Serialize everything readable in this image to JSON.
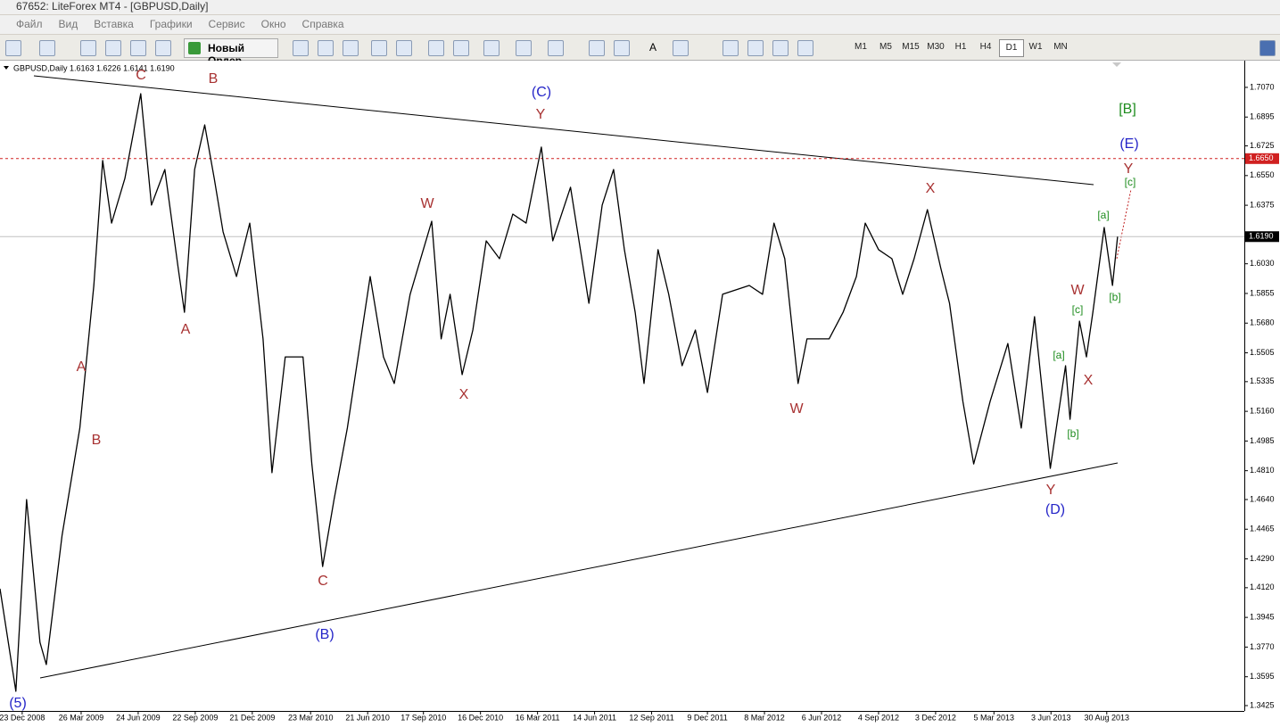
{
  "window": {
    "title": "67652: LiteForex MT4 - [GBPUSD,Daily]"
  },
  "menu": [
    "Файл",
    "Вид",
    "Вставка",
    "Графики",
    "Сервис",
    "Окно",
    "Справка"
  ],
  "toolbar": {
    "new_order": "Новый Ордер",
    "timeframes": [
      "M1",
      "M5",
      "M15",
      "M30",
      "H1",
      "H4",
      "D1",
      "W1",
      "MN"
    ],
    "active_timeframe": 6,
    "font_tool": "A"
  },
  "chart_data": {
    "type": "line",
    "title": "GBPUSD,Daily  1.6163 1.6226 1.6141 1.6190",
    "color": "#000000",
    "x": [
      "2008-11-18",
      "2008-12-13",
      "2008-12-30",
      "2009-01-20",
      "2009-01-30",
      "2009-02-24",
      "2009-03-24",
      "2009-04-15",
      "2009-04-29",
      "2009-05-13",
      "2009-06-03",
      "2009-06-28",
      "2009-07-15",
      "2009-08-05",
      "2009-08-26",
      "2009-09-05",
      "2009-09-21",
      "2009-10-07",
      "2009-10-22",
      "2009-11-05",
      "2009-11-26",
      "2009-12-17",
      "2010-01-07",
      "2010-01-21",
      "2010-02-11",
      "2010-03-11",
      "2010-03-25",
      "2010-04-11",
      "2010-04-29",
      "2010-05-20",
      "2010-06-25",
      "2010-07-16",
      "2010-08-02",
      "2010-08-27",
      "2010-09-30",
      "2010-10-15",
      "2010-10-29",
      "2010-11-17",
      "2010-12-04",
      "2010-12-25",
      "2011-01-15",
      "2011-02-05",
      "2011-02-26",
      "2011-03-22",
      "2011-04-09",
      "2011-05-07",
      "2011-06-05",
      "2011-06-26",
      "2011-07-14",
      "2011-07-31",
      "2011-08-17",
      "2011-08-31",
      "2011-09-22",
      "2011-10-09",
      "2011-10-30",
      "2011-11-20",
      "2011-12-09",
      "2012-01-02",
      "2012-02-13",
      "2012-03-05",
      "2012-03-23",
      "2012-04-09",
      "2012-04-30",
      "2012-05-14",
      "2012-06-18",
      "2012-07-10",
      "2012-07-31",
      "2012-08-14",
      "2012-09-04",
      "2012-09-25",
      "2012-10-12",
      "2012-10-30",
      "2012-11-20",
      "2012-12-11",
      "2012-12-25",
      "2013-01-15",
      "2013-02-01",
      "2013-02-27",
      "2013-03-27",
      "2013-04-17",
      "2013-05-08",
      "2013-06-02",
      "2013-06-26",
      "2013-07-03",
      "2013-07-18",
      "2013-07-29",
      "2013-08-08",
      "2013-08-26",
      "2013-09-08",
      "2013-09-16"
    ],
    "values": [
      1.4114,
      1.3509,
      1.464,
      1.3798,
      1.3667,
      1.4429,
      1.5061,
      1.5902,
      1.6639,
      1.627,
      1.6533,
      1.7033,
      1.6376,
      1.6586,
      1.6007,
      1.5744,
      1.6586,
      1.6849,
      1.6533,
      1.6218,
      1.5955,
      1.627,
      1.5587,
      1.4798,
      1.5481,
      1.5481,
      1.485,
      1.4245,
      1.464,
      1.5061,
      1.5955,
      1.5481,
      1.5324,
      1.585,
      1.6281,
      1.5587,
      1.585,
      1.5376,
      1.5639,
      1.6165,
      1.606,
      1.6323,
      1.627,
      1.6718,
      1.6165,
      1.6481,
      1.5797,
      1.6376,
      1.6586,
      1.6113,
      1.5744,
      1.5324,
      1.6113,
      1.585,
      1.5429,
      1.5639,
      1.5271,
      1.585,
      1.5902,
      1.585,
      1.627,
      1.606,
      1.5324,
      1.5587,
      1.5587,
      1.5744,
      1.5955,
      1.627,
      1.6113,
      1.606,
      1.585,
      1.606,
      1.6349,
      1.6007,
      1.5797,
      1.5218,
      1.485,
      1.5218,
      1.556,
      1.5061,
      1.5718,
      1.4824,
      1.5429,
      1.5113,
      1.5692,
      1.5481,
      1.5744,
      1.6244,
      1.5902,
      1.619
    ],
    "xlim": [
      "2008-11-18",
      "2014-04-04"
    ],
    "ylim": [
      1.3404,
      1.7217
    ],
    "xticks": [
      {
        "value": "2008-12-23",
        "label": "23 Dec 2008"
      },
      {
        "value": "2009-03-26",
        "label": "26 Mar 2009"
      },
      {
        "value": "2009-06-24",
        "label": "24 Jun 2009"
      },
      {
        "value": "2009-09-22",
        "label": "22 Sep 2009"
      },
      {
        "value": "2009-12-21",
        "label": "21 Dec 2009"
      },
      {
        "value": "2010-03-23",
        "label": "23 Mar 2010"
      },
      {
        "value": "2010-06-21",
        "label": "21 Jun 2010"
      },
      {
        "value": "2010-09-17",
        "label": "17 Sep 2010"
      },
      {
        "value": "2010-12-16",
        "label": "16 Dec 2010"
      },
      {
        "value": "2011-03-16",
        "label": "16 Mar 2011"
      },
      {
        "value": "2011-06-14",
        "label": "14 Jun 2011"
      },
      {
        "value": "2011-09-12",
        "label": "12 Sep 2011"
      },
      {
        "value": "2011-12-09",
        "label": "9 Dec 2011"
      },
      {
        "value": "2012-03-08",
        "label": "8 Mar 2012"
      },
      {
        "value": "2012-06-06",
        "label": "6 Jun 2012"
      },
      {
        "value": "2012-09-04",
        "label": "4 Sep 2012"
      },
      {
        "value": "2012-12-03",
        "label": "3 Dec 2012"
      },
      {
        "value": "2013-03-05",
        "label": "5 Mar 2013"
      },
      {
        "value": "2013-06-03",
        "label": "3 Jun 2013"
      },
      {
        "value": "2013-08-30",
        "label": "30 Aug 2013"
      }
    ],
    "yticks": [
      {
        "value": 1.707,
        "label": "1.7070"
      },
      {
        "value": 1.6895,
        "label": "1.6895"
      },
      {
        "value": 1.6725,
        "label": "1.6725"
      },
      {
        "value": 1.655,
        "label": "1.6550"
      },
      {
        "value": 1.6375,
        "label": "1.6375"
      },
      {
        "value": 1.603,
        "label": "1.6030"
      },
      {
        "value": 1.5855,
        "label": "1.5855"
      },
      {
        "value": 1.568,
        "label": "1.5680"
      },
      {
        "value": 1.5505,
        "label": "1.5505"
      },
      {
        "value": 1.5335,
        "label": "1.5335"
      },
      {
        "value": 1.516,
        "label": "1.5160"
      },
      {
        "value": 1.4985,
        "label": "1.4985"
      },
      {
        "value": 1.481,
        "label": "1.4810"
      },
      {
        "value": 1.464,
        "label": "1.4640"
      },
      {
        "value": 1.4465,
        "label": "1.4465"
      },
      {
        "value": 1.429,
        "label": "1.4290"
      },
      {
        "value": 1.412,
        "label": "1.4120"
      },
      {
        "value": 1.3945,
        "label": "1.3945"
      },
      {
        "value": 1.377,
        "label": "1.3770"
      },
      {
        "value": 1.3595,
        "label": "1.3595"
      },
      {
        "value": 1.3425,
        "label": "1.3425"
      }
    ],
    "hlines": [
      {
        "value": 1.665,
        "label": "1.6650",
        "color": "#d02020",
        "dashed": true
      },
      {
        "value": 1.619,
        "label": "1.6190",
        "color": "#c0c0c0",
        "dashed": false
      }
    ],
    "annotations": [
      {
        "text": "C",
        "color": "#a83232"
      },
      {
        "text": "B",
        "color": "#a83232"
      },
      {
        "text": "A",
        "color": "#a83232"
      },
      {
        "text": "A",
        "color": "#a83232"
      },
      {
        "text": "B",
        "color": "#a83232"
      },
      {
        "text": "C",
        "color": "#a83232"
      },
      {
        "text": "W",
        "color": "#a83232"
      },
      {
        "text": "X",
        "color": "#a83232"
      },
      {
        "text": "Y",
        "color": "#a83232"
      },
      {
        "text": "W",
        "color": "#a83232"
      },
      {
        "text": "X",
        "color": "#a83232"
      },
      {
        "text": "Y",
        "color": "#a83232"
      },
      {
        "text": "W",
        "color": "#a83232"
      },
      {
        "text": "X",
        "color": "#a83232"
      },
      {
        "text": "Y",
        "color": "#a83232"
      },
      {
        "text": "(5)",
        "color": "#2525c8"
      },
      {
        "text": "(B)",
        "color": "#2525c8"
      },
      {
        "text": "(C)",
        "color": "#2525c8"
      },
      {
        "text": "(D)",
        "color": "#2525c8"
      },
      {
        "text": "(E)",
        "color": "#2525c8"
      },
      {
        "text": "[B]",
        "color": "#1e8c1e"
      },
      {
        "text": "[c]",
        "color": "#1e8c1e"
      },
      {
        "text": "[a]",
        "color": "#1e8c1e"
      },
      {
        "text": "[b]",
        "color": "#1e8c1e"
      },
      {
        "text": "[c]",
        "color": "#1e8c1e"
      },
      {
        "text": "[a]",
        "color": "#1e8c1e"
      },
      {
        "text": "[b]",
        "color": "#1e8c1e"
      }
    ]
  }
}
